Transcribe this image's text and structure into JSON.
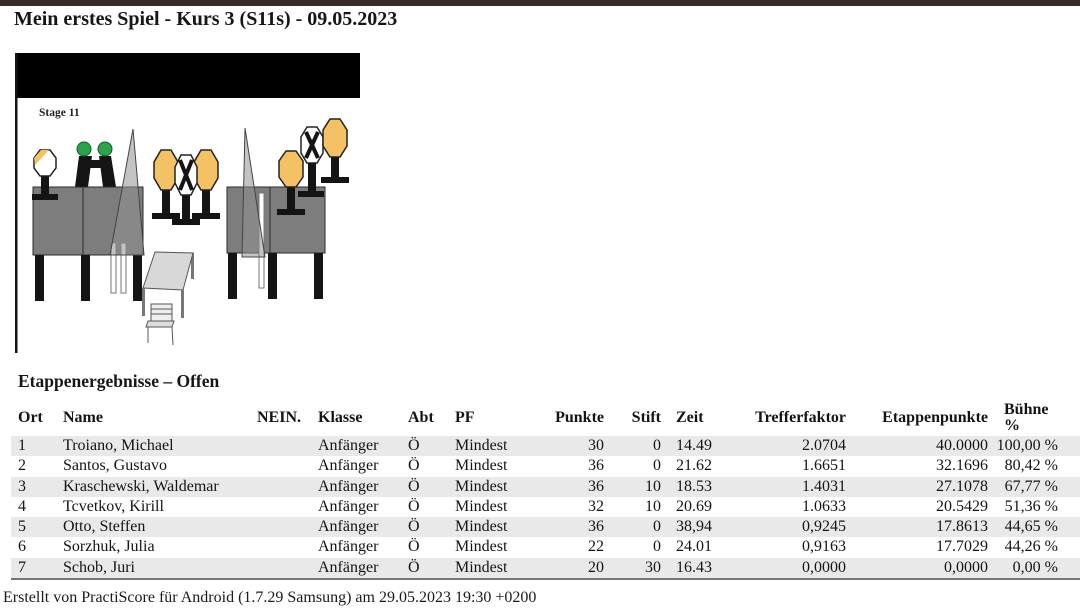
{
  "header": {
    "title": "Mein erstes Spiel - Kurs 3 (S11s) - 09.05.2023"
  },
  "stage": {
    "label": "Stage 11"
  },
  "results": {
    "heading": "Etappenergebnisse – Offen",
    "columns": [
      "Ort",
      "Name",
      "NEIN.",
      "Klasse",
      "Abt",
      "PF",
      "Punkte",
      "Stift",
      "Zeit",
      "Trefferfaktor",
      "Etappenpunkte",
      "Bühne %"
    ],
    "rows": [
      [
        "1",
        "Troiano, Michael",
        "",
        "Anfänger",
        "Ö",
        "Mindest",
        "30",
        "0",
        "14.49",
        "2.0704",
        "40.0000",
        "100,00 %"
      ],
      [
        "2",
        "Santos, Gustavo",
        "",
        "Anfänger",
        "Ö",
        "Mindest",
        "36",
        "0",
        "21.62",
        "1.6651",
        "32.1696",
        "80,42 %"
      ],
      [
        "3",
        "Kraschewski, Waldemar",
        "",
        "Anfänger",
        "Ö",
        "Mindest",
        "36",
        "10",
        "18.53",
        "1.4031",
        "27.1078",
        "67,77 %"
      ],
      [
        "4",
        "Tcvetkov, Kirill",
        "",
        "Anfänger",
        "Ö",
        "Mindest",
        "32",
        "10",
        "20.69",
        "1.0633",
        "20.5429",
        "51,36 %"
      ],
      [
        "5",
        "Otto, Steffen",
        "",
        "Anfänger",
        "Ö",
        "Mindest",
        "36",
        "0",
        "38,94",
        "0,9245",
        "17.8613",
        "44,65 %"
      ],
      [
        "6",
        "Sorzhuk, Julia",
        "",
        "Anfänger",
        "Ö",
        "Mindest",
        "22",
        "0",
        "24.01",
        "0,9163",
        "17.7029",
        "44,26 %"
      ],
      [
        "7",
        "Schob, Juri",
        "",
        "Anfänger",
        "Ö",
        "Mindest",
        "20",
        "30",
        "16.43",
        "0,0000",
        "0,0000",
        "0,00 %"
      ]
    ]
  },
  "footer": {
    "credit": "Erstellt von PractiScore für Android (1.7.29 Samsung) am 29.05.2023 19:30 +0200"
  },
  "colors": {
    "top_bar": "#382a27",
    "row_stripe": "#e9e9e9",
    "target_orange": "#f4c164",
    "wall_gray": "#7d7d7d",
    "head_green": "#2ca24c"
  }
}
